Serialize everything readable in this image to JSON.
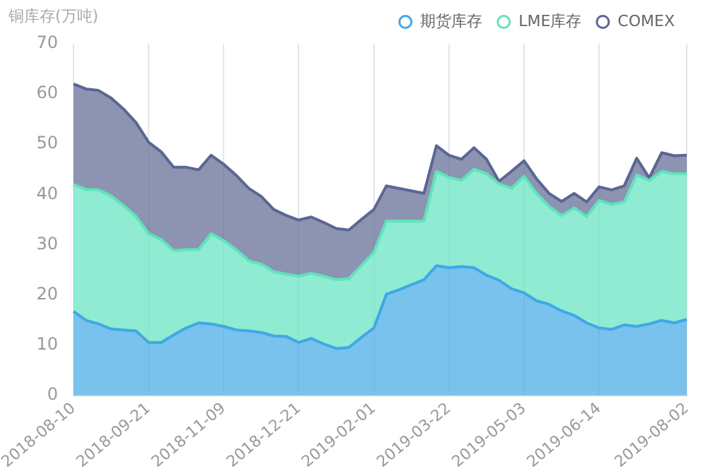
{
  "chart_data": {
    "type": "area",
    "ylabel": "铜库存(万吨)",
    "stacked": true,
    "categories": [
      "2018-08-10",
      null,
      null,
      null,
      null,
      null,
      "2018-09-21",
      null,
      null,
      null,
      null,
      null,
      "2018-11-09",
      null,
      null,
      null,
      null,
      null,
      "2018-12-21",
      null,
      null,
      null,
      null,
      null,
      "2019-02-01",
      null,
      null,
      null,
      null,
      null,
      "2019-03-22",
      null,
      null,
      null,
      null,
      null,
      "2019-05-03",
      null,
      null,
      null,
      null,
      null,
      "2019-06-14",
      null,
      null,
      null,
      null,
      null,
      null,
      "2019-08-02"
    ],
    "series": [
      {
        "name": "期货库存",
        "color": "#40a8e6",
        "values": [
          16.7,
          14.9,
          14.2,
          13.2,
          13,
          12.8,
          10.5,
          10.5,
          12,
          13.4,
          14.4,
          14.2,
          13.7,
          13,
          12.8,
          12.5,
          11.8,
          11.7,
          10.5,
          11.3,
          10.2,
          9.3,
          9.5,
          11.5,
          13.4,
          20.1,
          21,
          22,
          23,
          25.8,
          25.4,
          25.6,
          25.4,
          23.9,
          22.9,
          21.2,
          20.4,
          18.8,
          18.1,
          16.8,
          15.9,
          14.4,
          13.4,
          13.1,
          14,
          13.7,
          14.2,
          14.9,
          14.4,
          15.1
        ]
      },
      {
        "name": "LME库存",
        "color": "#5fe3bd",
        "values": [
          25.3,
          26.1,
          26.7,
          26.5,
          24.8,
          22.8,
          21.7,
          20.5,
          16.8,
          15.6,
          14.6,
          18,
          17.1,
          16,
          14,
          13.6,
          12.8,
          12.4,
          13.2,
          13,
          13.5,
          13.7,
          13.7,
          14.3,
          15.1,
          14.6,
          13.7,
          12.7,
          11.7,
          18.8,
          18,
          17.2,
          19.6,
          20.2,
          19.2,
          20,
          23.2,
          21.4,
          19.5,
          19,
          21.4,
          21.2,
          25.4,
          24.9,
          24.5,
          30.2,
          28.6,
          29.7,
          29.7,
          29
        ]
      },
      {
        "name": "COMEX",
        "color": "#5b6691",
        "values": [
          20,
          20,
          19.8,
          19.5,
          19.2,
          18.7,
          18.2,
          17.5,
          16.6,
          16.4,
          15.9,
          15.6,
          15.2,
          14.8,
          14.4,
          13.5,
          12.4,
          11.7,
          11.2,
          11.2,
          10.7,
          10.2,
          9.7,
          9.2,
          8.5,
          7,
          6.5,
          6,
          5.5,
          5.1,
          4.4,
          4.2,
          4.3,
          2.9,
          0.5,
          3.4,
          3.1,
          2.9,
          2.6,
          2.8,
          2.9,
          2.9,
          2.7,
          2.9,
          3.2,
          3.3,
          0.5,
          3.7,
          3.6,
          3.7
        ]
      }
    ],
    "ylim": [
      0,
      70
    ],
    "yticks": [
      0,
      10,
      20,
      30,
      40,
      50,
      60,
      70
    ],
    "grid": "x",
    "legend": "top right",
    "marker": "none",
    "line_style": "solid"
  }
}
